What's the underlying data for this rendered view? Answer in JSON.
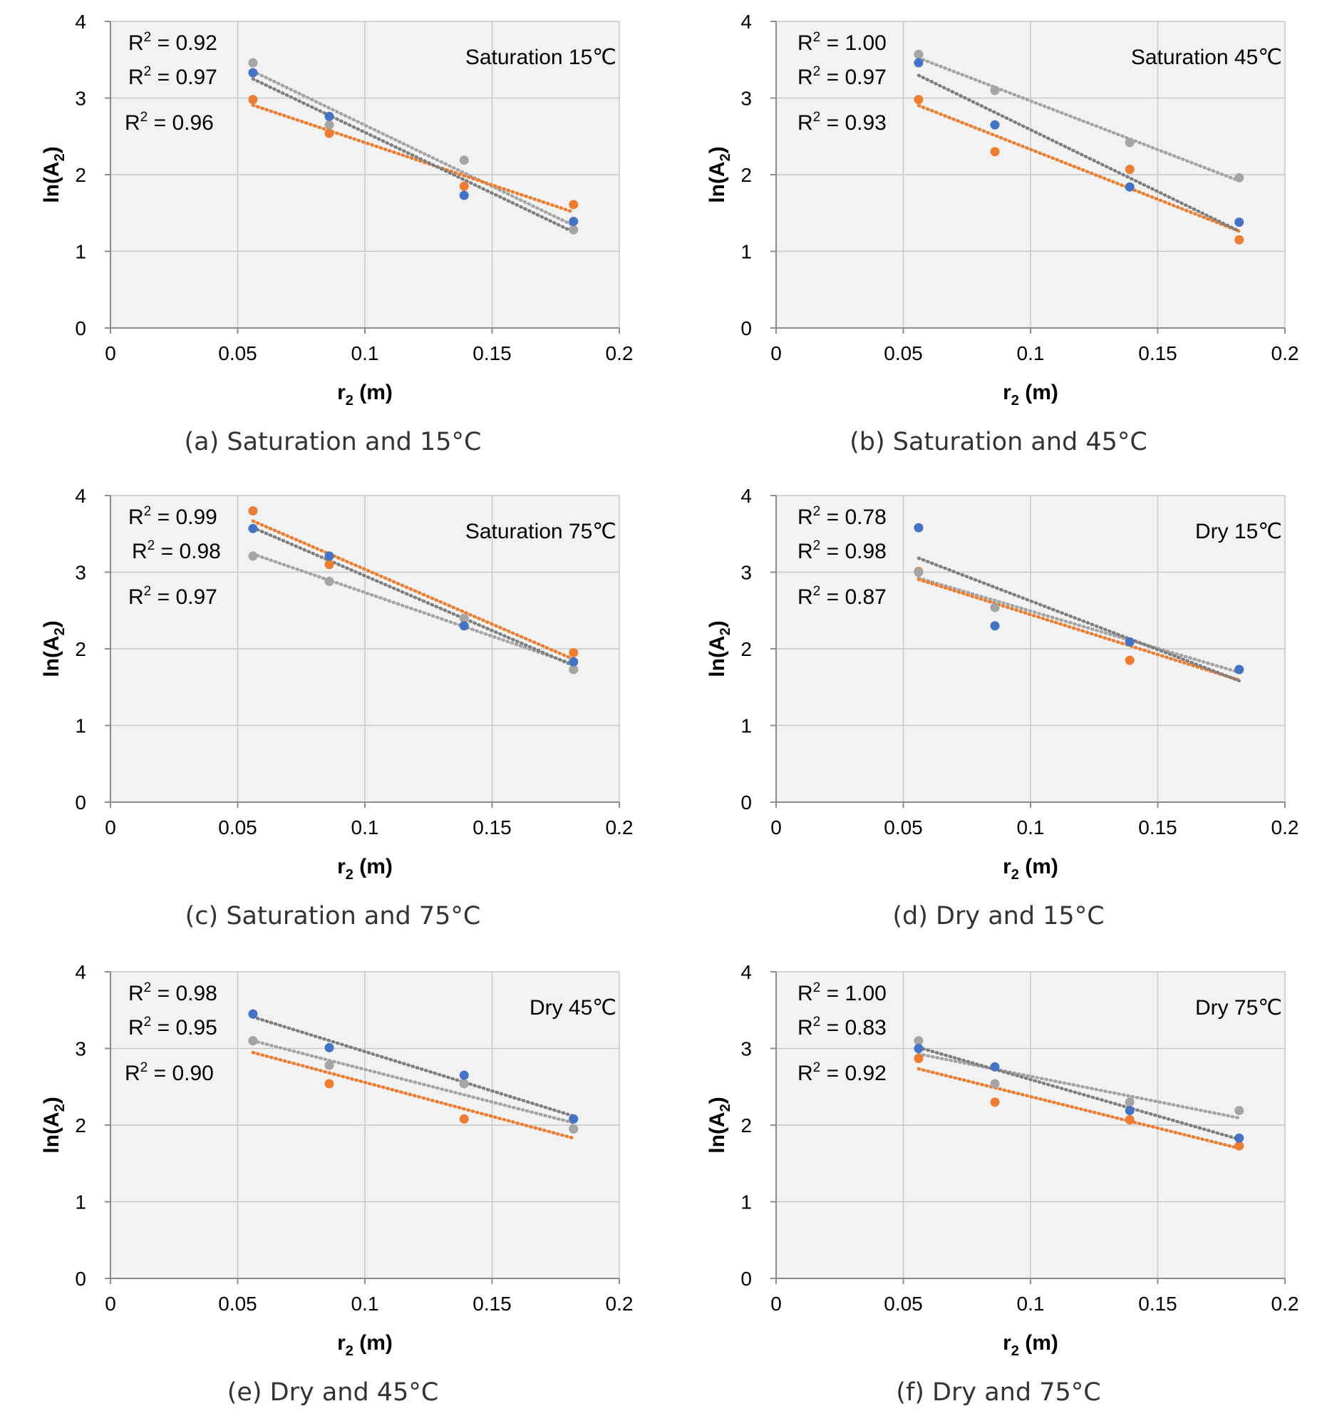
{
  "colors": {
    "blue": "#4472C4",
    "orange": "#ED7D31",
    "gray": "#A5A5A5",
    "trend_blue": "#7F7F7F",
    "plot_bg": "#F2F2F2"
  },
  "chart_data": [
    {
      "type": "scatter",
      "caption": "(a) Saturation and 15°C",
      "condition": "Saturation 15℃",
      "xlabel_main": "r",
      "xlabel_sub": "2",
      "xlabel_unit": " (m)",
      "ylabel_main": "ln(A",
      "ylabel_sub": "2",
      "ylabel_end": ")",
      "xlim": [
        0,
        0.2
      ],
      "ylim": [
        0,
        4
      ],
      "xticks": [
        "0",
        "0.05",
        "0.1",
        "0.15",
        "0.2"
      ],
      "yticks": [
        "0",
        "1",
        "2",
        "3",
        "4"
      ],
      "grid": true,
      "trendline": "linear dotted",
      "x": [
        0.056,
        0.086,
        0.139,
        0.182
      ],
      "series": [
        {
          "color": "blue",
          "values": [
            3.33,
            2.76,
            1.73,
            1.39
          ]
        },
        {
          "color": "orange",
          "values": [
            2.98,
            2.54,
            1.85,
            1.61
          ]
        },
        {
          "color": "gray",
          "values": [
            3.46,
            2.65,
            2.19,
            1.28
          ]
        }
      ],
      "r2_labels": [
        {
          "prefix": "R",
          "sup": "2",
          "value": " = 0.92"
        },
        {
          "prefix": "R",
          "sup": "2",
          "value": " = 0.97"
        },
        {
          "prefix": "R",
          "sup": "2",
          "value": " = 0.96"
        }
      ]
    },
    {
      "type": "scatter",
      "caption": "(b) Saturation and 45°C",
      "condition": "Saturation 45℃",
      "xlabel_main": "r",
      "xlabel_sub": "2",
      "xlabel_unit": " (m)",
      "ylabel_main": "ln(A",
      "ylabel_sub": "2",
      "ylabel_end": ")",
      "xlim": [
        0,
        0.2
      ],
      "ylim": [
        0,
        4
      ],
      "xticks": [
        "0",
        "0.05",
        "0.1",
        "0.15",
        "0.2"
      ],
      "yticks": [
        "0",
        "1",
        "2",
        "3",
        "4"
      ],
      "grid": true,
      "trendline": "linear dotted",
      "x": [
        0.056,
        0.086,
        0.139,
        0.182
      ],
      "series": [
        {
          "color": "blue",
          "values": [
            3.46,
            2.65,
            1.84,
            1.38
          ]
        },
        {
          "color": "orange",
          "values": [
            2.98,
            2.3,
            2.07,
            1.15
          ]
        },
        {
          "color": "gray",
          "values": [
            3.57,
            3.1,
            2.42,
            1.96
          ]
        }
      ],
      "r2_labels": [
        {
          "prefix": "R",
          "sup": "2",
          "value": " = 1.00"
        },
        {
          "prefix": "R",
          "sup": "2",
          "value": " = 0.97"
        },
        {
          "prefix": "R",
          "sup": "2",
          "value": " = 0.93"
        }
      ]
    },
    {
      "type": "scatter",
      "caption": "(c) Saturation and 75°C",
      "condition": "Saturation 75℃",
      "xlabel_main": "r",
      "xlabel_sub": "2",
      "xlabel_unit": " (m)",
      "ylabel_main": "ln(A",
      "ylabel_sub": "2",
      "ylabel_end": ")",
      "xlim": [
        0,
        0.2
      ],
      "ylim": [
        0,
        4
      ],
      "xticks": [
        "0",
        "0.05",
        "0.1",
        "0.15",
        "0.2"
      ],
      "yticks": [
        "0",
        "1",
        "2",
        "3",
        "4"
      ],
      "grid": true,
      "trendline": "linear dotted",
      "x": [
        0.056,
        0.086,
        0.139,
        0.182
      ],
      "series": [
        {
          "color": "blue",
          "values": [
            3.57,
            3.21,
            2.3,
            1.83
          ]
        },
        {
          "color": "orange",
          "values": [
            3.8,
            3.1,
            2.4,
            1.95
          ]
        },
        {
          "color": "gray",
          "values": [
            3.21,
            2.88,
            2.4,
            1.73
          ]
        }
      ],
      "r2_labels": [
        {
          "prefix": "R",
          "sup": "2",
          "value": " = 0.99"
        },
        {
          "prefix": "R",
          "sup": "2",
          "value": " = 0.98"
        },
        {
          "prefix": "R",
          "sup": "2",
          "value": " = 0.97"
        }
      ]
    },
    {
      "type": "scatter",
      "caption": "(d) Dry and 15°C",
      "condition": "Dry 15℃",
      "xlabel_main": "r",
      "xlabel_sub": "2",
      "xlabel_unit": " (m)",
      "ylabel_main": "ln(A",
      "ylabel_sub": "2",
      "ylabel_end": ")",
      "xlim": [
        0,
        0.2
      ],
      "ylim": [
        0,
        4
      ],
      "xticks": [
        "0",
        "0.05",
        "0.1",
        "0.15",
        "0.2"
      ],
      "yticks": [
        "0",
        "1",
        "2",
        "3",
        "4"
      ],
      "grid": true,
      "trendline": "linear dotted",
      "x": [
        0.056,
        0.086,
        0.139,
        0.182
      ],
      "series": [
        {
          "color": "blue",
          "values": [
            3.58,
            2.3,
            2.09,
            1.73
          ]
        },
        {
          "color": "orange",
          "values": [
            3.01,
            2.54,
            1.85,
            1.73
          ]
        },
        {
          "color": "gray",
          "values": [
            3.0,
            2.54,
            2.09,
            1.73
          ]
        }
      ],
      "r2_labels": [
        {
          "prefix": "R",
          "sup": "2",
          "value": " = 0.78"
        },
        {
          "prefix": "R",
          "sup": "2",
          "value": " = 0.98"
        },
        {
          "prefix": "R",
          "sup": "2",
          "value": " = 0.87"
        }
      ]
    },
    {
      "type": "scatter",
      "caption": "(e) Dry and 45°C",
      "condition": "Dry 45℃",
      "xlabel_main": "r",
      "xlabel_sub": "2",
      "xlabel_unit": " (m)",
      "ylabel_main": "ln(A",
      "ylabel_sub": "2",
      "ylabel_end": ")",
      "xlim": [
        0,
        0.2
      ],
      "ylim": [
        0,
        4
      ],
      "xticks": [
        "0",
        "0.05",
        "0.1",
        "0.15",
        "0.2"
      ],
      "yticks": [
        "0",
        "1",
        "2",
        "3",
        "4"
      ],
      "grid": true,
      "trendline": "linear dotted",
      "x": [
        0.056,
        0.086,
        0.139,
        0.182
      ],
      "series": [
        {
          "color": "blue",
          "values": [
            3.45,
            3.01,
            2.65,
            2.08
          ]
        },
        {
          "color": "orange",
          "values": [
            3.1,
            2.54,
            2.08,
            1.95
          ]
        },
        {
          "color": "gray",
          "values": [
            3.1,
            2.78,
            2.54,
            1.95
          ]
        }
      ],
      "r2_labels": [
        {
          "prefix": "R",
          "sup": "2",
          "value": " = 0.98"
        },
        {
          "prefix": "R",
          "sup": "2",
          "value": " = 0.95"
        },
        {
          "prefix": "R",
          "sup": "2",
          "value": " = 0.90"
        }
      ]
    },
    {
      "type": "scatter",
      "caption": "(f) Dry and 75°C",
      "condition": "Dry 75℃",
      "xlabel_main": "r",
      "xlabel_sub": "2",
      "xlabel_unit": " (m)",
      "ylabel_main": "ln(A",
      "ylabel_sub": "2",
      "ylabel_end": ")",
      "xlim": [
        0,
        0.2
      ],
      "ylim": [
        0,
        4
      ],
      "xticks": [
        "0",
        "0.05",
        "0.1",
        "0.15",
        "0.2"
      ],
      "yticks": [
        "0",
        "1",
        "2",
        "3",
        "4"
      ],
      "grid": true,
      "trendline": "linear dotted",
      "x": [
        0.056,
        0.086,
        0.139,
        0.182
      ],
      "series": [
        {
          "color": "blue",
          "values": [
            3.0,
            2.76,
            2.19,
            1.83
          ]
        },
        {
          "color": "orange",
          "values": [
            2.87,
            2.3,
            2.07,
            1.73
          ]
        },
        {
          "color": "gray",
          "values": [
            3.1,
            2.54,
            2.3,
            2.19
          ]
        }
      ],
      "r2_labels": [
        {
          "prefix": "R",
          "sup": "2",
          "value": " = 1.00"
        },
        {
          "prefix": "R",
          "sup": "2",
          "value": " = 0.83"
        },
        {
          "prefix": "R",
          "sup": "2",
          "value": " = 0.92"
        }
      ]
    }
  ]
}
